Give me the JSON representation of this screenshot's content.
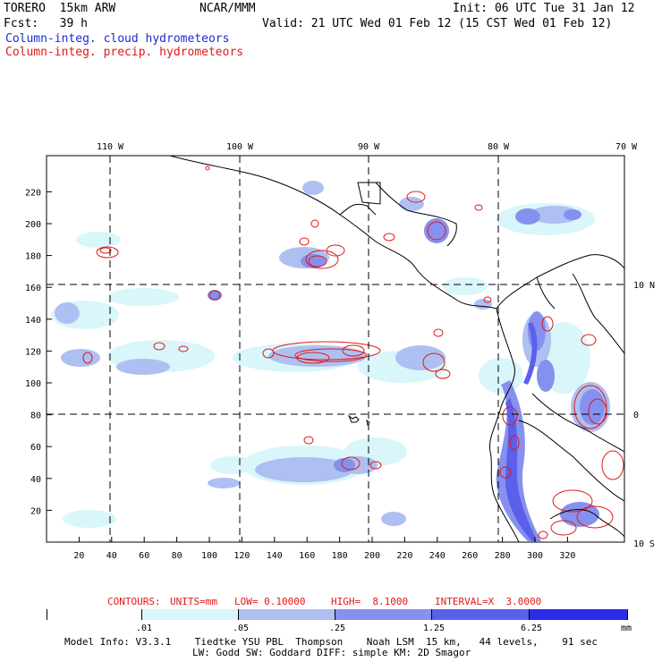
{
  "header": {
    "model_name": "TORERO  15km ARW",
    "org": "NCAR/MMM",
    "init": "Init: 06 UTC Tue 31 Jan 12",
    "fcst": "Fcst:   39 h",
    "valid": "Valid: 21 UTC Wed 01 Feb 12 (15 CST Wed 01 Feb 12)",
    "field_cloud": "Column-integ. cloud hydrometeors",
    "field_precip": "Column-integ. precip. hydrometeors"
  },
  "map": {
    "lon_labels": [
      "110 W",
      "100 W",
      "90 W",
      "80 W",
      "70 W"
    ],
    "lat_labels": [
      "10 N",
      "0",
      "10 S"
    ],
    "x_ticks": [
      "20",
      "40",
      "60",
      "80",
      "100",
      "120",
      "140",
      "160",
      "180",
      "200",
      "220",
      "240",
      "260",
      "280",
      "300",
      "320"
    ],
    "y_ticks": [
      "220",
      "200",
      "180",
      "160",
      "140",
      "120",
      "100",
      "80",
      "60",
      "40",
      "20"
    ]
  },
  "contours": {
    "title": "CONTOURS:",
    "units": "UNITS=mm",
    "low": "LOW= 0.10000",
    "high": "HIGH=  8.1000",
    "interval": "INTERVAL=X  3.0000"
  },
  "colorbar": {
    "labels": [
      ".01",
      ".05",
      ".25",
      "1.25",
      "6.25"
    ],
    "unit": "mm",
    "colors": [
      "#ffffff",
      "#d9f6fb",
      "#aec0f2",
      "#8690ee",
      "#5a60ea",
      "#2b2bea"
    ]
  },
  "model_info": {
    "line1": "Model Info: V3.3.1    Tiedtke YSU PBL  Thompson    Noah LSM  15 km,   44 levels,    91 sec",
    "line2": "LW: Godd SW: Goddard DIFF: simple KM: 2D Smagor"
  }
}
